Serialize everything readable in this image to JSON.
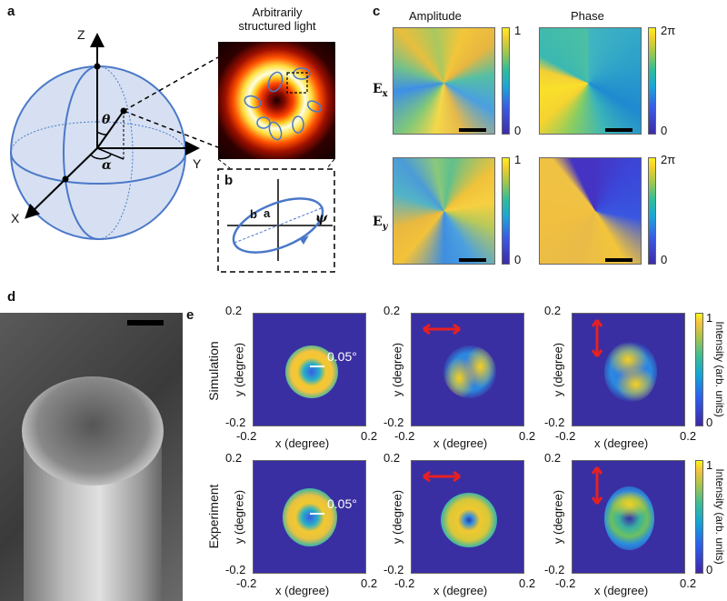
{
  "panel_labels": {
    "a": "a",
    "b": "b",
    "c": "c",
    "d": "d",
    "e": "e"
  },
  "panel_a": {
    "axes": {
      "z": "Z",
      "y": "Y",
      "x": "X"
    },
    "angles": {
      "theta": "θ",
      "alpha": "α"
    },
    "title": "Arbitrarily structured light",
    "title_line1": "Arbitrarily",
    "title_line2": "structured light"
  },
  "panel_b": {
    "labels": {
      "a": "a",
      "b": "b",
      "psi": "ψ"
    }
  },
  "panel_c": {
    "col_titles": [
      "Amplitude",
      "Phase"
    ],
    "row_labels": [
      "Ex",
      "Ey"
    ],
    "row_label_main": "E",
    "row_subs": [
      "x",
      "y"
    ],
    "amplitude_cbar": {
      "max": "1",
      "min": "0"
    },
    "phase_cbar": {
      "max": "2π",
      "min": "0"
    }
  },
  "panel_e": {
    "row_labels": [
      "Simulation",
      "Experiment"
    ],
    "xlabel": "x (degree)",
    "ylabel": "y (degree)",
    "ticks": {
      "min": "-0.2",
      "max": "0.2"
    },
    "annotation": "0.05°",
    "colorbar": {
      "label": "Intensity (arb. units)",
      "max": "1",
      "min": "0"
    },
    "arrow_color": "#e82020"
  }
}
